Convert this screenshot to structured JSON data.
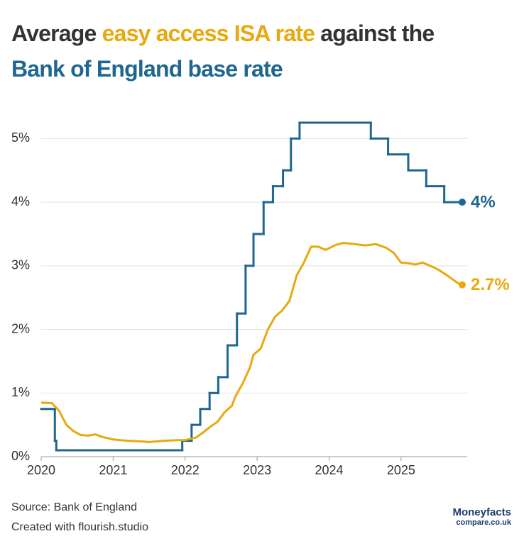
{
  "chart_data": {
    "type": "line",
    "title_lines": [
      [
        {
          "text": "Average ",
          "color": "#333333"
        },
        {
          "text": "easy access ISA rate",
          "color": "#e8a90e"
        },
        {
          "text": " against the",
          "color": "#333333"
        }
      ],
      [
        {
          "text": "Bank of England base rate",
          "color": "#1f6690"
        }
      ]
    ],
    "xlim": [
      2020,
      2025.85
    ],
    "xticks": [
      2020,
      2021,
      2022,
      2023,
      2024,
      2025
    ],
    "ylim": [
      0,
      5.45
    ],
    "yticks": [
      {
        "value": 0,
        "label": "0%"
      },
      {
        "value": 1,
        "label": "1%"
      },
      {
        "value": 2,
        "label": "2%"
      },
      {
        "value": 3,
        "label": "3%"
      },
      {
        "value": 4,
        "label": "4%"
      },
      {
        "value": 5,
        "label": "5%"
      }
    ],
    "grid": true,
    "series": [
      {
        "name": "Bank of England base rate",
        "color": "#1f6690",
        "step": true,
        "end_label": "4%",
        "x": [
          2020,
          2020.19,
          2020.21,
          2021.96,
          2022.09,
          2022.21,
          2022.34,
          2022.46,
          2022.59,
          2022.72,
          2022.84,
          2022.95,
          2023.09,
          2023.22,
          2023.36,
          2023.47,
          2023.59,
          2024.58,
          2024.82,
          2025.1,
          2025.35,
          2025.6,
          2025.85
        ],
        "values": [
          0.75,
          0.25,
          0.1,
          0.25,
          0.5,
          0.75,
          1,
          1.25,
          1.75,
          2.25,
          3,
          3.5,
          4,
          4.25,
          4.5,
          5,
          5.25,
          5,
          4.75,
          4.5,
          4.25,
          4,
          4
        ]
      },
      {
        "name": "Average easy access ISA rate",
        "color": "#e8a90e",
        "step": false,
        "end_label": "2.7%",
        "x": [
          2020,
          2020.15,
          2020.25,
          2020.35,
          2020.45,
          2020.55,
          2020.65,
          2020.75,
          2020.85,
          2021,
          2021.2,
          2021.4,
          2021.5,
          2021.7,
          2021.9,
          2022,
          2022.15,
          2022.25,
          2022.35,
          2022.45,
          2022.55,
          2022.65,
          2022.7,
          2022.8,
          2022.9,
          2022.95,
          2023.05,
          2023.15,
          2023.25,
          2023.35,
          2023.45,
          2023.5,
          2023.55,
          2023.65,
          2023.75,
          2023.85,
          2023.95,
          2024.1,
          2024.2,
          2024.35,
          2024.5,
          2024.65,
          2024.8,
          2024.9,
          2025,
          2025.1,
          2025.2,
          2025.3,
          2025.4,
          2025.5,
          2025.6,
          2025.7,
          2025.8,
          2025.85
        ],
        "values": [
          0.85,
          0.84,
          0.72,
          0.5,
          0.4,
          0.34,
          0.33,
          0.35,
          0.31,
          0.27,
          0.25,
          0.24,
          0.23,
          0.25,
          0.26,
          0.26,
          0.3,
          0.38,
          0.47,
          0.55,
          0.7,
          0.8,
          0.95,
          1.15,
          1.4,
          1.6,
          1.7,
          2,
          2.2,
          2.3,
          2.45,
          2.65,
          2.85,
          3.05,
          3.3,
          3.3,
          3.25,
          3.33,
          3.36,
          3.34,
          3.32,
          3.34,
          3.28,
          3.2,
          3.05,
          3.04,
          3.02,
          3.05,
          3,
          2.95,
          2.88,
          2.8,
          2.72,
          2.7
        ]
      }
    ],
    "source": "Source: Bank of England",
    "credit": "Created with flourish.studio",
    "logo": {
      "name": "Moneyfacts",
      "domain": "compare.co.uk"
    }
  }
}
